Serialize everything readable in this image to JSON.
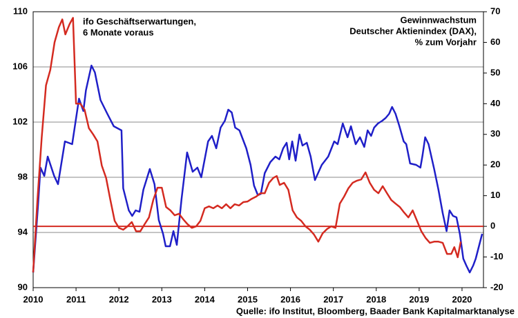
{
  "chart_data": {
    "type": "line",
    "source": "Quelle: ifo Institut, Bloomberg, Baader Bank Kapitalmarktanalyse",
    "xlim": [
      2010,
      2020.5
    ],
    "xticks": [
      2010,
      2011,
      2012,
      2013,
      2014,
      2015,
      2016,
      2017,
      2018,
      2019,
      2020
    ],
    "ylim": [
      90,
      110
    ],
    "yticks": [
      90,
      94,
      98,
      102,
      106,
      110
    ],
    "y2lim": [
      -20,
      70
    ],
    "y2ticks": [
      -20,
      -10,
      0,
      10,
      20,
      30,
      40,
      50,
      60,
      70
    ],
    "grid": true,
    "series": [
      {
        "name": [
          "ifo Geschäftserwartungen,",
          "6 Monate voraus"
        ],
        "color": "#1f1fc8",
        "axis": "y",
        "x": [
          2010.0,
          2010.11,
          2010.17,
          2010.26,
          2010.34,
          2010.49,
          2010.58,
          2010.74,
          2010.91,
          2011.07,
          2011.17,
          2011.23,
          2011.36,
          2011.44,
          2011.57,
          2011.73,
          2011.88,
          2012.06,
          2012.1,
          2012.23,
          2012.31,
          2012.39,
          2012.48,
          2012.57,
          2012.72,
          2012.83,
          2012.93,
          2013.03,
          2013.09,
          2013.19,
          2013.27,
          2013.35,
          2013.46,
          2013.59,
          2013.72,
          2013.83,
          2013.92,
          2014.08,
          2014.17,
          2014.27,
          2014.37,
          2014.47,
          2014.55,
          2014.63,
          2014.71,
          2014.81,
          2014.97,
          2015.07,
          2015.15,
          2015.24,
          2015.31,
          2015.4,
          2015.53,
          2015.65,
          2015.74,
          2015.83,
          2015.91,
          2015.97,
          2016.04,
          2016.12,
          2016.21,
          2016.28,
          2016.38,
          2016.47,
          2016.57,
          2016.73,
          2016.88,
          2017.02,
          2017.1,
          2017.22,
          2017.33,
          2017.41,
          2017.52,
          2017.62,
          2017.72,
          2017.8,
          2017.88,
          2017.95,
          2018.04,
          2018.14,
          2018.22,
          2018.3,
          2018.37,
          2018.45,
          2018.54,
          2018.64,
          2018.7,
          2018.79,
          2018.93,
          2019.03,
          2019.08,
          2019.14,
          2019.22,
          2019.35,
          2019.45,
          2019.55,
          2019.64,
          2019.71,
          2019.79,
          2019.87,
          2019.95,
          2020.03,
          2020.1,
          2020.18,
          2020.26,
          2020.32,
          2020.47
        ],
        "values": [
          91.1,
          95.8,
          98.7,
          98.1,
          99.5,
          98.1,
          97.5,
          100.6,
          100.4,
          103.7,
          102.8,
          104.3,
          106.1,
          105.6,
          103.6,
          102.6,
          101.7,
          101.4,
          97.2,
          95.6,
          95.2,
          95.6,
          95.5,
          97.1,
          98.6,
          97.5,
          94.9,
          93.9,
          93.0,
          93.0,
          94.1,
          93.1,
          96.4,
          99.8,
          98.4,
          98.7,
          98.0,
          100.6,
          101.0,
          100.1,
          101.6,
          102.1,
          102.9,
          102.7,
          101.6,
          101.4,
          100.1,
          98.9,
          97.4,
          96.7,
          96.8,
          98.3,
          99.1,
          99.5,
          99.3,
          100.1,
          100.5,
          99.3,
          100.6,
          99.2,
          101.1,
          100.3,
          100.5,
          99.5,
          97.8,
          98.9,
          99.5,
          100.6,
          100.4,
          101.9,
          100.9,
          101.7,
          100.4,
          100.9,
          100.2,
          101.4,
          101.0,
          101.6,
          101.9,
          102.1,
          102.3,
          102.6,
          103.1,
          102.6,
          101.7,
          100.6,
          100.4,
          99.0,
          98.9,
          98.7,
          99.6,
          100.9,
          100.4,
          98.6,
          97.1,
          95.4,
          94.1,
          95.6,
          95.2,
          95.1,
          93.9,
          92.1,
          91.6,
          91.1,
          91.6,
          92.1,
          93.9
        ]
      },
      {
        "name": [
          "Gewinnwachstum",
          "Deutscher Aktienindex (DAX),",
          "% zum Vorjahr"
        ],
        "color": "#d42a20",
        "axis": "y2",
        "x": [
          2010.0,
          2010.1,
          2010.2,
          2010.3,
          2010.4,
          2010.5,
          2010.6,
          2010.68,
          2010.75,
          2010.85,
          2010.93,
          2011.0,
          2011.1,
          2011.2,
          2011.3,
          2011.4,
          2011.5,
          2011.6,
          2011.7,
          2011.8,
          2011.9,
          2012.0,
          2012.1,
          2012.2,
          2012.3,
          2012.4,
          2012.5,
          2012.6,
          2012.7,
          2012.8,
          2012.9,
          2013.0,
          2013.1,
          2013.2,
          2013.3,
          2013.4,
          2013.5,
          2013.6,
          2013.7,
          2013.8,
          2013.9,
          2014.0,
          2014.1,
          2014.2,
          2014.3,
          2014.4,
          2014.5,
          2014.6,
          2014.7,
          2014.8,
          2014.9,
          2015.0,
          2015.1,
          2015.2,
          2015.3,
          2015.4,
          2015.5,
          2015.6,
          2015.68,
          2015.75,
          2015.85,
          2015.95,
          2016.05,
          2016.15,
          2016.25,
          2016.35,
          2016.45,
          2016.55,
          2016.65,
          2016.75,
          2016.85,
          2016.95,
          2017.05,
          2017.15,
          2017.25,
          2017.35,
          2017.45,
          2017.55,
          2017.65,
          2017.75,
          2017.85,
          2017.95,
          2018.05,
          2018.15,
          2018.25,
          2018.35,
          2018.45,
          2018.55,
          2018.65,
          2018.75,
          2018.85,
          2018.95,
          2019.05,
          2019.15,
          2019.25,
          2019.35,
          2019.45,
          2019.55,
          2019.65,
          2019.75,
          2019.82,
          2019.9,
          2019.97
        ],
        "values": [
          -15,
          8.6,
          29,
          46,
          51,
          60,
          65,
          67.5,
          62.6,
          66,
          68,
          40,
          40,
          38,
          32,
          30,
          27.7,
          19.8,
          15.8,
          8.6,
          1.8,
          -0.5,
          -1.1,
          0,
          1.4,
          -1.6,
          -1.6,
          0.7,
          2.9,
          8.6,
          12.6,
          12.6,
          6.3,
          5.2,
          3.6,
          4.1,
          2.3,
          0.7,
          -0.5,
          0,
          1.8,
          5.9,
          6.5,
          5.9,
          6.8,
          5.9,
          7.2,
          5.9,
          7.2,
          6.8,
          7.9,
          8.1,
          9,
          9.7,
          10.8,
          10.8,
          14.2,
          15.8,
          16.4,
          13.5,
          14.2,
          11.9,
          5.2,
          2.9,
          1.8,
          0,
          -1.1,
          -2.7,
          -5,
          -2.3,
          -0.9,
          0,
          -0.5,
          7.4,
          9.7,
          12.4,
          14.2,
          14.9,
          15.3,
          17.6,
          14.2,
          11.9,
          10.8,
          13.1,
          10.8,
          8.6,
          7.4,
          6.3,
          4.5,
          2.9,
          5.2,
          1.8,
          -1.6,
          -3.8,
          -5.4,
          -5,
          -5,
          -5.4,
          -9,
          -9,
          -6.8,
          -10.1,
          -5
        ]
      }
    ]
  }
}
